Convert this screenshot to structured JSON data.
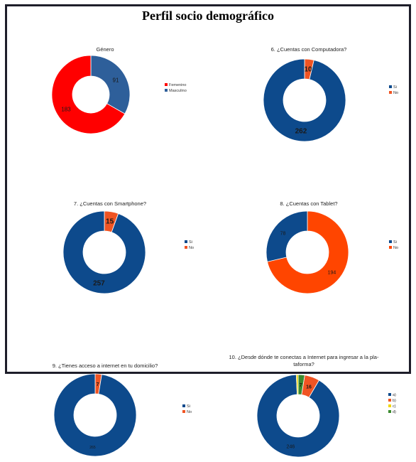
{
  "page_title": "Perfil socio demográfico",
  "chart_data": [
    {
      "type": "pie",
      "title": "Género",
      "categories": [
        "Femenino",
        "Masculino"
      ],
      "values": [
        183,
        91
      ],
      "colors": [
        "#ff0000",
        "#2e5f9a"
      ],
      "value_labels": [
        "183",
        "91"
      ]
    },
    {
      "type": "pie",
      "title": "6. ¿Cuentas con Computadora?",
      "categories": [
        "Si",
        "No"
      ],
      "values": [
        262,
        10
      ],
      "colors": [
        "#0d4a8c",
        "#f05423"
      ],
      "value_labels": [
        "262",
        "10"
      ]
    },
    {
      "type": "pie",
      "title": "7. ¿Cuentas con Smartphone?",
      "categories": [
        "Si",
        "No"
      ],
      "values": [
        257,
        15
      ],
      "colors": [
        "#0d4a8c",
        "#f05423"
      ],
      "value_labels": [
        "257",
        "15"
      ]
    },
    {
      "type": "pie",
      "title": "8. ¿Cuentas con Tablet?",
      "categories": [
        "Si",
        "No"
      ],
      "values": [
        78,
        194
      ],
      "colors": [
        "#0d4a8c",
        "#ff4500"
      ],
      "value_labels": [
        "78",
        "194"
      ]
    },
    {
      "type": "pie",
      "title": "9. ¿Tienes acceso a internet en tu domicilio?",
      "categories": [
        "Si",
        "No"
      ],
      "values": [
        265,
        7
      ],
      "colors": [
        "#0d4a8c",
        "#f05423"
      ],
      "value_labels": [
        "265",
        "7"
      ]
    },
    {
      "type": "pie",
      "title": "10. ¿Desde dónde te conectas a Internet para ingresar a la plataforma?",
      "categories": [
        "a)",
        "b)",
        "c)",
        "d)"
      ],
      "values": [
        246,
        16,
        2,
        7
      ],
      "colors": [
        "#0d4a8c",
        "#f05423",
        "#f2d600",
        "#3a8a2e"
      ],
      "value_labels": [
        "246",
        "16",
        "",
        "7"
      ]
    }
  ]
}
